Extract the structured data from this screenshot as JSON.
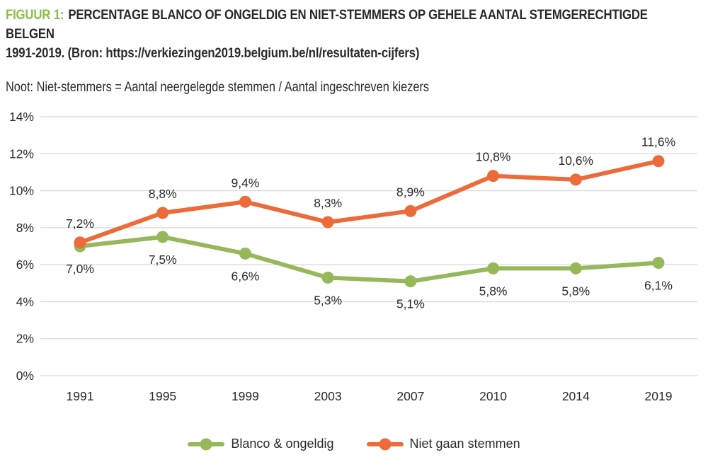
{
  "header": {
    "figure_label": "FIGUUR 1:",
    "title_line1": "PERCENTAGE BLANCO OF ONGELDIG EN NIET-STEMMERS OP GEHELE AANTAL STEMGERECHTIGDE BELGEN",
    "title_line2": "1991-2019. (Bron: https://verkiezingen2019.belgium.be/nl/resultaten-cijfers)",
    "note": "Noot: Niet-stemmers = Aantal neergelegde stemmen / Aantal ingeschreven kiezers"
  },
  "colors": {
    "title_green": "#8dbe4b",
    "green": "#96b85a",
    "orange": "#ed6b3a",
    "text": "#2b2a29",
    "grid": "#d9d9d9"
  },
  "chart_data": {
    "type": "line",
    "categories": [
      "1991",
      "1995",
      "1999",
      "2003",
      "2007",
      "2010",
      "2014",
      "2019"
    ],
    "series": [
      {
        "name": "Blanco & ongeldig",
        "color_key": "green",
        "values": [
          7.0,
          7.5,
          6.6,
          5.3,
          5.1,
          5.8,
          5.8,
          6.1
        ],
        "labels": [
          "7,0%",
          "7,5%",
          "6,6%",
          "5,3%",
          "5,1%",
          "5,8%",
          "5,8%",
          "6,1%"
        ],
        "label_position": "below"
      },
      {
        "name": "Niet gaan stemmen",
        "color_key": "orange",
        "values": [
          7.2,
          8.8,
          9.4,
          8.3,
          8.9,
          10.8,
          10.6,
          11.6
        ],
        "labels": [
          "7,2%",
          "8,8%",
          "9,4%",
          "8,3%",
          "8,9%",
          "10,8%",
          "10,6%",
          "11,6%"
        ],
        "label_position": "above"
      }
    ],
    "y_ticks": [
      "0%",
      "2%",
      "4%",
      "6%",
      "8%",
      "10%",
      "12%",
      "14%"
    ],
    "ylim": [
      0,
      14
    ],
    "grid": true,
    "legend_position": "bottom"
  }
}
